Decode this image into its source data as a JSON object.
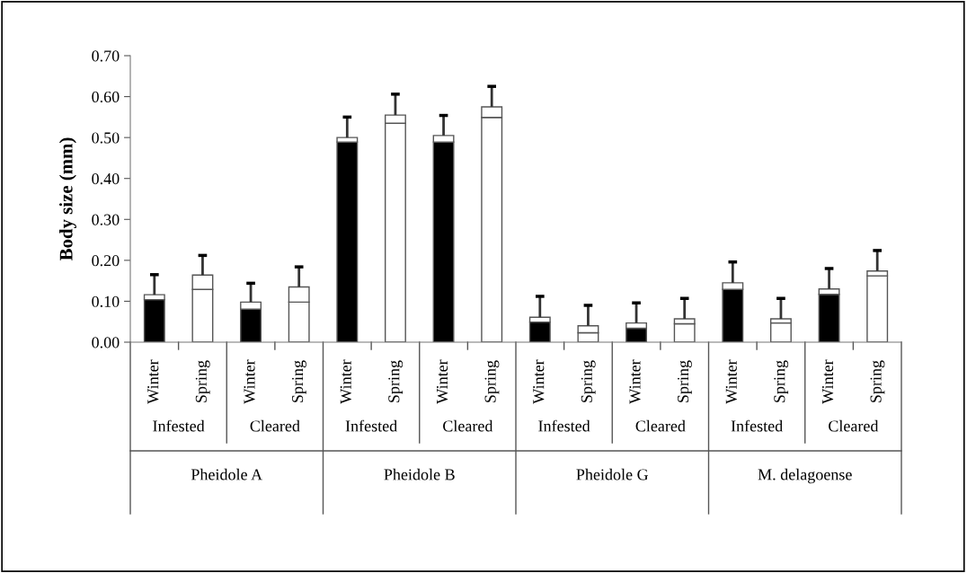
{
  "chart_data": {
    "type": "bar",
    "stacked": true,
    "ylabel": "Body size (mm)",
    "categories": [
      "Winter",
      "Spring",
      "Winter",
      "Spring",
      "Winter",
      "Spring",
      "Winter",
      "Spring",
      "Winter",
      "Spring",
      "Winter",
      "Spring",
      "Winter",
      "Spring",
      "Winter",
      "Spring"
    ],
    "series": [
      {
        "colors": [
          "#000000",
          "#ffffff",
          "#000000",
          "#ffffff",
          "#000000",
          "#ffffff",
          "#000000",
          "#ffffff",
          "#000000",
          "#ffffff",
          "#000000",
          "#ffffff",
          "#000000",
          "#ffffff",
          "#000000",
          "#ffffff"
        ],
        "values": [
          0.104,
          0.129,
          0.081,
          0.098,
          0.489,
          0.535,
          0.489,
          0.549,
          0.049,
          0.023,
          0.034,
          0.045,
          0.129,
          0.047,
          0.117,
          0.162
        ]
      },
      {
        "color": "#ffffff",
        "values": [
          0.012,
          0.035,
          0.017,
          0.037,
          0.011,
          0.02,
          0.016,
          0.026,
          0.012,
          0.017,
          0.013,
          0.012,
          0.016,
          0.01,
          0.013,
          0.012
        ],
        "errors": [
          [
            0.116,
            0.165
          ],
          [
            0.164,
            0.212
          ],
          [
            0.098,
            0.144
          ],
          [
            0.135,
            0.184
          ],
          [
            0.5,
            0.55
          ],
          [
            0.555,
            0.606
          ],
          [
            0.505,
            0.554
          ],
          [
            0.575,
            0.625
          ],
          [
            0.061,
            0.112
          ],
          [
            0.04,
            0.09
          ],
          [
            0.047,
            0.096
          ],
          [
            0.057,
            0.107
          ],
          [
            0.145,
            0.196
          ],
          [
            0.057,
            0.107
          ],
          [
            0.13,
            0.18
          ],
          [
            0.174,
            0.224
          ]
        ]
      }
    ],
    "ylim": [
      0,
      0.7
    ],
    "yticks": [
      {
        "value": 0,
        "label": "0.00"
      },
      {
        "value": 0.1,
        "label": "0.10"
      },
      {
        "value": 0.2,
        "label": "0.20"
      },
      {
        "value": 0.3,
        "label": "0.30"
      },
      {
        "value": 0.4,
        "label": "0.40"
      },
      {
        "value": 0.5,
        "label": "0.50"
      },
      {
        "value": 0.6,
        "label": "0.60"
      },
      {
        "value": 0.7,
        "label": "0.70"
      }
    ],
    "annotations": [
      "Infested",
      "Cleared",
      "Infested",
      "Cleared",
      "Infested",
      "Cleared",
      "Infested",
      "Cleared",
      "Pheidole A",
      "Pheidole B",
      "Pheidole G",
      "M. delagoense"
    ],
    "grid": false,
    "legend": false
  }
}
